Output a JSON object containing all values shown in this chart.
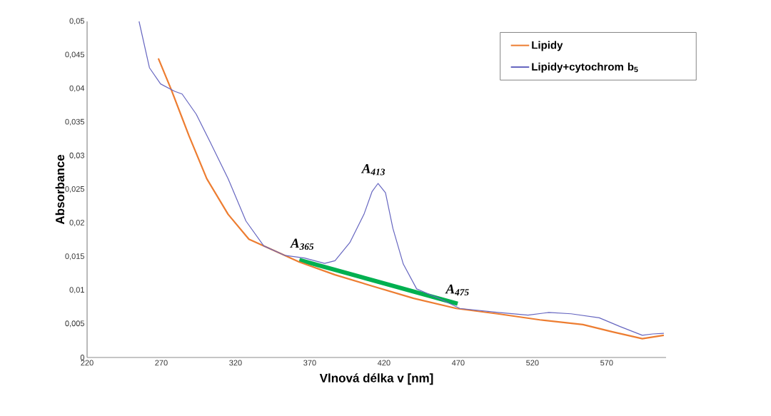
{
  "chart_data": {
    "type": "line",
    "xlabel": "Vlnová délka v [nm]",
    "ylabel": "Absorbance",
    "xlim": [
      220,
      610
    ],
    "ylim": [
      0,
      0.05
    ],
    "xticks": [
      220,
      270,
      320,
      370,
      420,
      470,
      520,
      570
    ],
    "yticks": [
      0,
      {
        "value": 0.005,
        "label": "0,005"
      },
      {
        "value": 0.01,
        "label": "0,01"
      },
      {
        "value": 0.015,
        "label": "0,015"
      },
      {
        "value": 0.02,
        "label": "0,02"
      },
      {
        "value": 0.025,
        "label": "0,025"
      },
      {
        "value": 0.03,
        "label": "0,03"
      },
      {
        "value": 0.035,
        "label": "0,035"
      },
      {
        "value": 0.04,
        "label": "0,04"
      },
      {
        "value": 0.045,
        "label": "0,045"
      },
      {
        "value": 0.05,
        "label": "0,05"
      }
    ],
    "legend": "top right",
    "series": [
      {
        "name": "Lipidy",
        "color": "#ed7d31",
        "x": [
          268,
          276.6,
          288.6,
          300.6,
          315,
          329,
          345,
          363,
          387,
          411,
          440,
          468.7,
          496.5,
          525,
          554,
          574,
          594,
          608.5
        ],
        "values": [
          0.0445,
          0.0399,
          0.033,
          0.0266,
          0.0213,
          0.0176,
          0.016,
          0.0142,
          0.0123,
          0.0107,
          0.0088,
          0.0073,
          0.0065,
          0.0056,
          0.0049,
          0.0038,
          0.0028,
          0.0033
        ]
      },
      {
        "name": "Lipidy+cytochrom b$_{5}$",
        "color": "#6666c0",
        "x": [
          255,
          262,
          269.5,
          279,
          284,
          293.5,
          303,
          315,
          327,
          339,
          353,
          366.5,
          380,
          387,
          397,
          406.5,
          412,
          416,
          421,
          426,
          433,
          442,
          459,
          471,
          497,
          517,
          531,
          546,
          565,
          579,
          594,
          601,
          608.5
        ],
        "values": [
          0.05,
          0.0431,
          0.0407,
          0.0396,
          0.0392,
          0.0362,
          0.032,
          0.0266,
          0.0203,
          0.0166,
          0.0152,
          0.0148,
          0.014,
          0.0144,
          0.0171,
          0.0213,
          0.0247,
          0.0259,
          0.0245,
          0.0192,
          0.0139,
          0.0102,
          0.0086,
          0.0073,
          0.0067,
          0.0063,
          0.0067,
          0.0065,
          0.0059,
          0.0046,
          0.0033,
          0.0035,
          0.0036
        ]
      },
      {
        "type": "line",
        "color": "#00b050",
        "x": [
          363,
          469.6
        ],
        "values": [
          0.0145,
          0.008
        ]
      }
    ],
    "annotations": [
      {
        "text": "A$_{365}$",
        "x": 365,
        "y": 0.0148
      },
      {
        "text": "A$_{413}$",
        "x": 413,
        "y": 0.0259
      },
      {
        "text": "A$_{475}$",
        "x": 469.6,
        "y": 0.008
      }
    ]
  }
}
